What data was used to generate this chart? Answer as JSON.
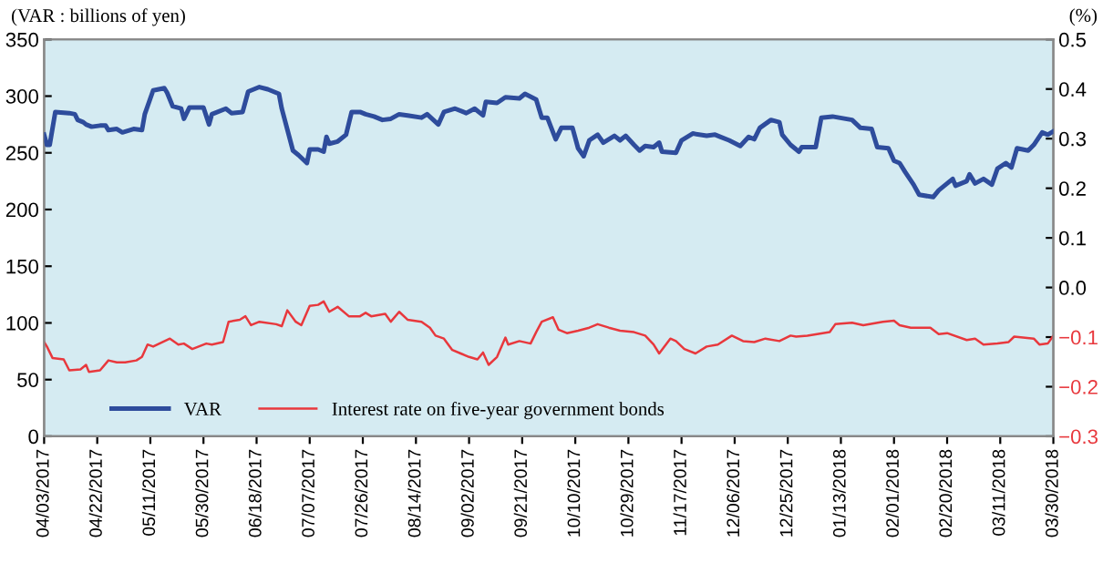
{
  "chart_data": {
    "type": "line",
    "ylabel": "(VAR : billions of yen)",
    "y2label": "(%)",
    "xlim": [
      "2017-04-03",
      "2018-03-30"
    ],
    "xticks": [
      {
        "value": "2017-04-03",
        "label": "04/03/2017"
      },
      {
        "value": "2017-04-22",
        "label": "04/22/2017"
      },
      {
        "value": "2017-05-11",
        "label": "05/11/2017"
      },
      {
        "value": "2017-05-30",
        "label": "05/30/2017"
      },
      {
        "value": "2017-06-18",
        "label": "06/18/2017"
      },
      {
        "value": "2017-07-07",
        "label": "07/07/2017"
      },
      {
        "value": "2017-07-26",
        "label": "07/26/2017"
      },
      {
        "value": "2017-08-14",
        "label": "08/14/2017"
      },
      {
        "value": "2017-09-02",
        "label": "09/02/2017"
      },
      {
        "value": "2017-09-21",
        "label": "09/21/2017"
      },
      {
        "value": "2017-10-10",
        "label": "10/10/2017"
      },
      {
        "value": "2017-10-29",
        "label": "10/29/2017"
      },
      {
        "value": "2017-11-17",
        "label": "11/17/2017"
      },
      {
        "value": "2017-12-06",
        "label": "12/06/2017"
      },
      {
        "value": "2017-12-25",
        "label": "12/25/2017"
      },
      {
        "value": "2018-01-13",
        "label": "01/13/2018"
      },
      {
        "value": "2018-02-01",
        "label": "02/01/2018"
      },
      {
        "value": "2018-02-20",
        "label": "02/20/2018"
      },
      {
        "value": "2018-03-11",
        "label": "03/11/2018"
      },
      {
        "value": "2018-03-30",
        "label": "03/30/2018"
      }
    ],
    "ylim": [
      0,
      350
    ],
    "yticks": [
      0,
      50,
      100,
      150,
      200,
      250,
      300,
      350
    ],
    "y2lim": [
      -0.3,
      0.5
    ],
    "y2ticks": [
      {
        "value": -0.3,
        "label": "−0.3"
      },
      {
        "value": -0.2,
        "label": "−0.2"
      },
      {
        "value": -0.1,
        "label": "−0.1"
      },
      {
        "value": 0,
        "label": "0.0"
      },
      0.1,
      0.2,
      0.3,
      0.4,
      0.5
    ],
    "grid": false,
    "legend": "bottom left",
    "marker": "none",
    "line_style": "solid",
    "series": [
      {
        "name": "VAR",
        "color": "#2e4c9c",
        "x": [
          "2017-04-03",
          "2017-04-04",
          "2017-04-05",
          "2017-04-07",
          "2017-04-12",
          "2017-04-14",
          "2017-04-15",
          "2017-04-17",
          "2017-04-18",
          "2017-04-20",
          "2017-04-23",
          "2017-04-25",
          "2017-04-26",
          "2017-04-29",
          "2017-05-01",
          "2017-05-05",
          "2017-05-08",
          "2017-05-09",
          "2017-05-12",
          "2017-05-16",
          "2017-05-17",
          "2017-05-19",
          "2017-05-22",
          "2017-05-23",
          "2017-05-25",
          "2017-05-30",
          "2017-06-01",
          "2017-06-02",
          "2017-06-07",
          "2017-06-09",
          "2017-06-13",
          "2017-06-15",
          "2017-06-19",
          "2017-06-22",
          "2017-06-26",
          "2017-06-27",
          "2017-07-01",
          "2017-07-03",
          "2017-07-06",
          "2017-07-07",
          "2017-07-10",
          "2017-07-12",
          "2017-07-13",
          "2017-07-14",
          "2017-07-17",
          "2017-07-20",
          "2017-07-22",
          "2017-07-25",
          "2017-07-27",
          "2017-07-30",
          "2017-08-02",
          "2017-08-05",
          "2017-08-08",
          "2017-08-11",
          "2017-08-16",
          "2017-08-18",
          "2017-08-22",
          "2017-08-24",
          "2017-08-28",
          "2017-09-01",
          "2017-09-04",
          "2017-09-07",
          "2017-09-08",
          "2017-09-12",
          "2017-09-15",
          "2017-09-20",
          "2017-09-22",
          "2017-09-26",
          "2017-09-28",
          "2017-09-30",
          "2017-10-03",
          "2017-10-05",
          "2017-10-09",
          "2017-10-11",
          "2017-10-13",
          "2017-10-15",
          "2017-10-18",
          "2017-10-20",
          "2017-10-24",
          "2017-10-26",
          "2017-10-28",
          "2017-10-31",
          "2017-11-02",
          "2017-11-04",
          "2017-11-07",
          "2017-11-09",
          "2017-11-10",
          "2017-11-15",
          "2017-11-17",
          "2017-11-21",
          "2017-11-26",
          "2017-11-29",
          "2017-12-01",
          "2017-12-04",
          "2017-12-08",
          "2017-12-11",
          "2017-12-13",
          "2017-12-15",
          "2017-12-19",
          "2017-12-22",
          "2017-12-23",
          "2017-12-26",
          "2017-12-29",
          "2017-12-30",
          "2018-01-04",
          "2018-01-06",
          "2018-01-10",
          "2018-01-17",
          "2018-01-20",
          "2018-01-24",
          "2018-01-26",
          "2018-01-30",
          "2018-02-01",
          "2018-02-03",
          "2018-02-05",
          "2018-02-08",
          "2018-02-10",
          "2018-02-15",
          "2018-02-17",
          "2018-02-20",
          "2018-02-22",
          "2018-02-23",
          "2018-02-27",
          "2018-02-28",
          "2018-03-02",
          "2018-03-05",
          "2018-03-08",
          "2018-03-10",
          "2018-03-13",
          "2018-03-15",
          "2018-03-17",
          "2018-03-21",
          "2018-03-23",
          "2018-03-26",
          "2018-03-28",
          "2018-03-30"
        ],
        "values": [
          266,
          257,
          257,
          286,
          285,
          284,
          279,
          277,
          275,
          273,
          274,
          274,
          270,
          271,
          268,
          271,
          270,
          284,
          305,
          307,
          303,
          291,
          289,
          280,
          290,
          290,
          275,
          284,
          289,
          285,
          286,
          304,
          308,
          306,
          302,
          289,
          252,
          248,
          241,
          253,
          253,
          251,
          264,
          258,
          260,
          266,
          286,
          286,
          284,
          282,
          279,
          280,
          284,
          283,
          281,
          284,
          275,
          286,
          289,
          285,
          289,
          283,
          295,
          294,
          299,
          298,
          302,
          297,
          281,
          281,
          262,
          272,
          272,
          254,
          247,
          261,
          266,
          259,
          265,
          261,
          265,
          257,
          252,
          256,
          255,
          259,
          251,
          250,
          261,
          267,
          265,
          266,
          264,
          261,
          256,
          264,
          262,
          272,
          279,
          277,
          266,
          257,
          251,
          255,
          255,
          281,
          282,
          279,
          272,
          271,
          255,
          254,
          243,
          241,
          233,
          222,
          213,
          211,
          217,
          223,
          227,
          221,
          225,
          231,
          223,
          227,
          222,
          236,
          241,
          237,
          254,
          252,
          257,
          268,
          266,
          269
        ]
      },
      {
        "name": "Interest rate on five-year government bonds",
        "color": "#e8383d",
        "axis": "y2",
        "x": [
          "2017-04-03",
          "2017-04-04",
          "2017-04-06",
          "2017-04-10",
          "2017-04-12",
          "2017-04-16",
          "2017-04-18",
          "2017-04-19",
          "2017-04-23",
          "2017-04-26",
          "2017-04-29",
          "2017-05-02",
          "2017-05-06",
          "2017-05-08",
          "2017-05-10",
          "2017-05-12",
          "2017-05-18",
          "2017-05-21",
          "2017-05-23",
          "2017-05-26",
          "2017-05-31",
          "2017-06-02",
          "2017-06-06",
          "2017-06-08",
          "2017-06-12",
          "2017-06-14",
          "2017-06-16",
          "2017-06-19",
          "2017-06-25",
          "2017-06-27",
          "2017-06-29",
          "2017-07-02",
          "2017-07-04",
          "2017-07-07",
          "2017-07-10",
          "2017-07-12",
          "2017-07-14",
          "2017-07-17",
          "2017-07-21",
          "2017-07-25",
          "2017-07-27",
          "2017-07-29",
          "2017-08-03",
          "2017-08-05",
          "2017-08-08",
          "2017-08-11",
          "2017-08-16",
          "2017-08-19",
          "2017-08-21",
          "2017-08-24",
          "2017-08-27",
          "2017-08-30",
          "2017-09-02",
          "2017-09-05",
          "2017-09-07",
          "2017-09-09",
          "2017-09-12",
          "2017-09-15",
          "2017-09-16",
          "2017-09-20",
          "2017-09-24",
          "2017-09-26",
          "2017-09-28",
          "2017-10-02",
          "2017-10-04",
          "2017-10-07",
          "2017-10-11",
          "2017-10-15",
          "2017-10-18",
          "2017-10-22",
          "2017-10-26",
          "2017-10-31",
          "2017-11-04",
          "2017-11-07",
          "2017-11-09",
          "2017-11-13",
          "2017-11-15",
          "2017-11-18",
          "2017-11-22",
          "2017-11-26",
          "2017-11-30",
          "2017-12-05",
          "2017-12-09",
          "2017-12-13",
          "2017-12-17",
          "2017-12-22",
          "2017-12-26",
          "2017-12-28",
          "2018-01-01",
          "2018-01-09",
          "2018-01-11",
          "2018-01-17",
          "2018-01-21",
          "2018-01-28",
          "2018-02-01",
          "2018-02-03",
          "2018-02-07",
          "2018-02-14",
          "2018-02-17",
          "2018-02-20",
          "2018-02-27",
          "2018-03-02",
          "2018-03-05",
          "2018-03-10",
          "2018-03-14",
          "2018-03-16",
          "2018-03-23",
          "2018-03-25",
          "2018-03-28",
          "2018-03-30"
        ],
        "values": [
          -0.11,
          -0.119,
          -0.142,
          -0.145,
          -0.167,
          -0.165,
          -0.156,
          -0.17,
          -0.167,
          -0.147,
          -0.151,
          -0.151,
          -0.147,
          -0.14,
          -0.115,
          -0.119,
          -0.103,
          -0.115,
          -0.113,
          -0.124,
          -0.113,
          -0.115,
          -0.11,
          -0.069,
          -0.065,
          -0.058,
          -0.076,
          -0.069,
          -0.074,
          -0.078,
          -0.046,
          -0.069,
          -0.076,
          -0.037,
          -0.035,
          -0.028,
          -0.049,
          -0.039,
          -0.058,
          -0.058,
          -0.051,
          -0.058,
          -0.053,
          -0.069,
          -0.049,
          -0.065,
          -0.069,
          -0.081,
          -0.097,
          -0.103,
          -0.126,
          -0.133,
          -0.14,
          -0.145,
          -0.131,
          -0.156,
          -0.14,
          -0.101,
          -0.115,
          -0.108,
          -0.113,
          -0.09,
          -0.069,
          -0.06,
          -0.085,
          -0.092,
          -0.087,
          -0.081,
          -0.074,
          -0.081,
          -0.087,
          -0.09,
          -0.097,
          -0.115,
          -0.133,
          -0.103,
          -0.108,
          -0.124,
          -0.133,
          -0.119,
          -0.115,
          -0.097,
          -0.108,
          -0.11,
          -0.103,
          -0.108,
          -0.097,
          -0.099,
          -0.097,
          -0.09,
          -0.074,
          -0.071,
          -0.076,
          -0.069,
          -0.067,
          -0.076,
          -0.081,
          -0.081,
          -0.094,
          -0.092,
          -0.106,
          -0.103,
          -0.115,
          -0.113,
          -0.11,
          -0.099,
          -0.103,
          -0.115,
          -0.113,
          -0.097
        ]
      }
    ]
  }
}
